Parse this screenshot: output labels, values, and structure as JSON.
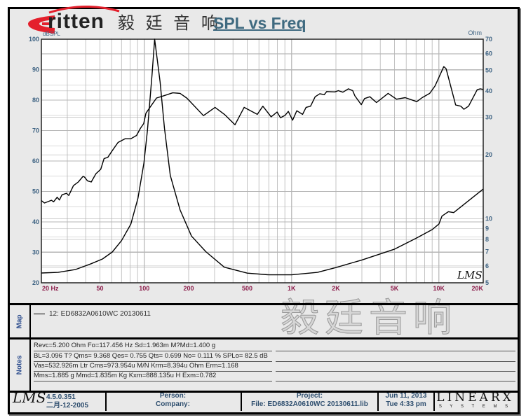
{
  "brand": {
    "logo_text": "ritten",
    "logo_chinese": "毅 廷 音 响",
    "watermark": "毅廷音响",
    "logo_color": "#e4202c"
  },
  "chart_data": {
    "type": "line",
    "title": "SPL vs Freq",
    "x_scale": "log",
    "xlim": [
      20,
      20000
    ],
    "x_ticks": [
      {
        "value": 20,
        "label": "20  Hz"
      },
      {
        "value": 50,
        "label": "50"
      },
      {
        "value": 100,
        "label": "100"
      },
      {
        "value": 200,
        "label": "200"
      },
      {
        "value": 500,
        "label": "500"
      },
      {
        "value": 1000,
        "label": "1K"
      },
      {
        "value": 2000,
        "label": "2K"
      },
      {
        "value": 5000,
        "label": "5K"
      },
      {
        "value": 10000,
        "label": "10K"
      },
      {
        "value": 20000,
        "label": "20K"
      }
    ],
    "left_axis": {
      "label": "dBSPL",
      "ylim": [
        20,
        100
      ],
      "ticks": [
        "20",
        "30",
        "40",
        "50",
        "60",
        "70",
        "80",
        "90",
        "100"
      ]
    },
    "right_axis": {
      "label": "Ohm",
      "scale": "log",
      "ylim": [
        5,
        70
      ],
      "ticks": [
        "5",
        "6",
        "7",
        "8",
        "9",
        "10",
        "20",
        "30",
        "40",
        "50",
        "60",
        "70"
      ]
    },
    "grid": true,
    "colors": {
      "curve": "#000000",
      "grid": "#b5b5b5",
      "x_tick": "#8b1c4a",
      "y_tick": "#3d6282",
      "plot_bg": "#ffffff"
    },
    "series": [
      {
        "axis": "left",
        "points": [
          [
            20,
            47
          ],
          [
            21,
            46.2
          ],
          [
            23.4,
            47.1
          ],
          [
            24.2,
            46.6
          ],
          [
            25.6,
            48.1
          ],
          [
            26.5,
            47.2
          ],
          [
            27.6,
            48.9
          ],
          [
            29.6,
            49.4
          ],
          [
            30.7,
            48.7
          ],
          [
            33,
            51.9
          ],
          [
            35.6,
            53.1
          ],
          [
            38.4,
            55
          ],
          [
            39.3,
            54.7
          ],
          [
            41.1,
            53.5
          ],
          [
            43.6,
            53.1
          ],
          [
            46.9,
            55.8
          ],
          [
            50.6,
            57.3
          ],
          [
            53.3,
            60.8
          ],
          [
            56.5,
            61.2
          ],
          [
            60.6,
            63.4
          ],
          [
            66.3,
            66.1
          ],
          [
            74,
            67.3
          ],
          [
            81,
            67.3
          ],
          [
            88.6,
            68.4
          ],
          [
            94,
            70.7
          ],
          [
            99,
            72.3
          ],
          [
            102.6,
            75.7
          ],
          [
            110.6,
            78
          ],
          [
            121,
            80.7
          ],
          [
            135,
            81.4
          ],
          [
            156,
            82.4
          ],
          [
            175,
            82.2
          ],
          [
            194,
            80.7
          ],
          [
            201,
            79.9
          ],
          [
            252,
            74.9
          ],
          [
            302,
            77.6
          ],
          [
            350,
            75.3
          ],
          [
            413,
            71.9
          ],
          [
            476,
            77.6
          ],
          [
            585,
            75.3
          ],
          [
            638,
            78
          ],
          [
            726,
            74.5
          ],
          [
            797,
            76.1
          ],
          [
            840,
            74.2
          ],
          [
            903,
            75
          ],
          [
            950,
            76.3
          ],
          [
            1016,
            73.4
          ],
          [
            1085,
            76.5
          ],
          [
            1187,
            75.3
          ],
          [
            1254,
            77.6
          ],
          [
            1345,
            78
          ],
          [
            1446,
            81.1
          ],
          [
            1554,
            82.1
          ],
          [
            1668,
            81.8
          ],
          [
            1730,
            82.8
          ],
          [
            1966,
            82.7
          ],
          [
            2076,
            83.1
          ],
          [
            2230,
            82.6
          ],
          [
            2430,
            83.7
          ],
          [
            2600,
            83.1
          ],
          [
            2690,
            81.4
          ],
          [
            2970,
            78.5
          ],
          [
            3130,
            80.5
          ],
          [
            3400,
            81.1
          ],
          [
            3770,
            79.2
          ],
          [
            4520,
            82.2
          ],
          [
            5160,
            80.3
          ],
          [
            5910,
            80.8
          ],
          [
            7080,
            79.5
          ],
          [
            7700,
            80.8
          ],
          [
            8660,
            82.2
          ],
          [
            9430,
            84.7
          ],
          [
            10800,
            91
          ],
          [
            11200,
            90.3
          ],
          [
            13000,
            78.4
          ],
          [
            14100,
            78
          ],
          [
            14800,
            77
          ],
          [
            15900,
            78
          ],
          [
            18200,
            83.4
          ],
          [
            19100,
            83.7
          ],
          [
            20000,
            83.5
          ]
        ]
      },
      {
        "axis": "right",
        "points": [
          [
            20,
            5.56
          ],
          [
            26,
            5.6
          ],
          [
            34,
            5.77
          ],
          [
            43.6,
            6.15
          ],
          [
            52,
            6.47
          ],
          [
            60.6,
            6.98
          ],
          [
            70,
            7.9
          ],
          [
            81,
            9.45
          ],
          [
            90.5,
            12.5
          ],
          [
            99.4,
            18.3
          ],
          [
            105,
            26
          ],
          [
            112.8,
            47.7
          ],
          [
            117.5,
            70
          ],
          [
            128,
            44
          ],
          [
            137,
            26.7
          ],
          [
            150,
            16
          ],
          [
            175,
            11
          ],
          [
            209,
            8.3
          ],
          [
            262,
            7
          ],
          [
            349,
            5.92
          ],
          [
            500,
            5.55
          ],
          [
            700,
            5.45
          ],
          [
            1000,
            5.45
          ],
          [
            1500,
            5.6
          ],
          [
            2000,
            5.9
          ],
          [
            3000,
            6.4
          ],
          [
            5000,
            7.2
          ],
          [
            7000,
            8.1
          ],
          [
            9000,
            8.9
          ],
          [
            10000,
            9.45
          ],
          [
            10500,
            10.3
          ],
          [
            11600,
            10.8
          ],
          [
            12600,
            10.7
          ],
          [
            20000,
            13.8
          ]
        ]
      }
    ]
  },
  "map": {
    "label": "Map",
    "entry": "12: ED6832A0610WC   20130611"
  },
  "notes": {
    "label": "Notes",
    "lines": [
      "Revc=5.200 Ohm  Fo=117.456 Hz  Sd=1.963m M?Md=1.400 g",
      "BL=3.096 T?  Qms= 9.368  Qes= 0.755  Qts= 0.699  No= 0.111 %  SPLo= 82.5 dB",
      "Vas=532.926m Ltr  Cms=973.954u M/N  Krm=8.394u Ohm  Erm=1.168",
      "Mms=1.885 g  Mmd=1.835m Kg  Kxm=888.135u H  Exm=0.782"
    ]
  },
  "footer": {
    "app_logo": "LMS",
    "version": "4.5.0.351",
    "build_date": "二月-12-2005",
    "person_label": "Person:",
    "company_label": "Company:",
    "project_label": "Project:",
    "file_label": "File: ED6832A0610WC  20130611.lib",
    "date": "Jun 11, 2013",
    "time": "Tue  4:33 pm",
    "vendor_logo": "LINEARX",
    "vendor_sub": "S Y S T E M S"
  }
}
